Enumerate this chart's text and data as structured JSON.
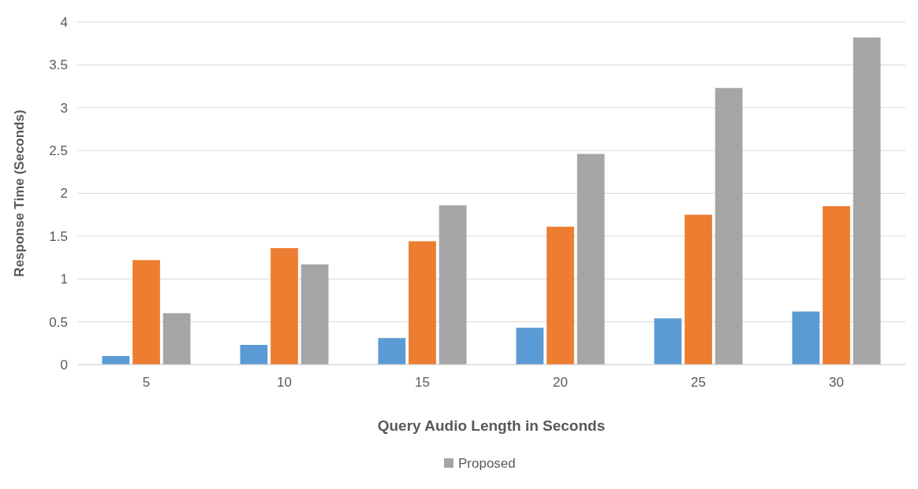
{
  "chart_data": {
    "type": "bar",
    "xlabel": "Query Audio Length in Seconds",
    "ylabel": "Response Time (Seconds)",
    "categories": [
      "5",
      "10",
      "15",
      "20",
      "25",
      "30"
    ],
    "series": [
      {
        "color": "#5b9bd5",
        "values": [
          0.1,
          0.23,
          0.31,
          0.43,
          0.54,
          0.62
        ]
      },
      {
        "color": "#ed7d31",
        "values": [
          1.22,
          1.36,
          1.44,
          1.61,
          1.75,
          1.85
        ]
      },
      {
        "name": "Proposed",
        "color": "#a5a5a5",
        "values": [
          0.6,
          1.17,
          1.86,
          2.46,
          3.23,
          3.82
        ]
      }
    ],
    "ylim": [
      0,
      4
    ],
    "yticks": [
      0,
      0.5,
      1,
      1.5,
      2,
      2.5,
      3,
      3.5,
      4
    ],
    "grid": "y",
    "legend": "bottom"
  }
}
